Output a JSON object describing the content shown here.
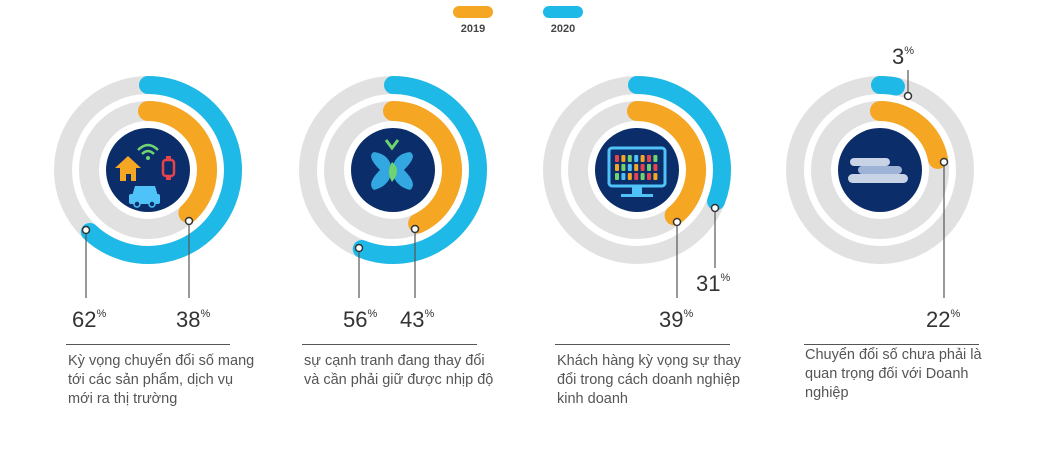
{
  "legend": [
    {
      "label": "2019",
      "color": "#F5A623"
    },
    {
      "label": "2020",
      "color": "#1EB9E6"
    }
  ],
  "colors": {
    "track": "#E1E1E1",
    "center": "#0B2E6B",
    "outer": "#1EB9E6",
    "inner": "#F5A623"
  },
  "chart_data": [
    {
      "type": "donut",
      "series": [
        {
          "name": "2020",
          "value": 62
        },
        {
          "name": "2019",
          "value": 38
        }
      ],
      "icon": "devices-home-car-icon",
      "description": "Kỳ vọng chuyển đổi số mang tới các sản phẩm, dịch vụ mới ra thị trường"
    },
    {
      "type": "donut",
      "series": [
        {
          "name": "2020",
          "value": 56
        },
        {
          "name": "2019",
          "value": 43
        }
      ],
      "icon": "butterfly-icon",
      "description": "sự cạnh tranh đang thay đổi và cần phải giữ được nhịp độ"
    },
    {
      "type": "donut",
      "series": [
        {
          "name": "2020",
          "value": 31
        },
        {
          "name": "2019",
          "value": 39
        }
      ],
      "icon": "monitor-dashboard-icon",
      "description": "Khách hàng kỳ vọng sự thay đổi trong cách doanh nghiệp kinh doanh"
    },
    {
      "type": "donut",
      "series": [
        {
          "name": "2020",
          "value": 3
        },
        {
          "name": "2019",
          "value": 22
        }
      ],
      "icon": "cloud-icon",
      "description": "Chuyển đổi số chưa phải là quan trọng đối với Doanh nghiệp"
    }
  ],
  "labels": [
    {
      "outer": {
        "value": "62",
        "unit": "%"
      },
      "inner": {
        "value": "38",
        "unit": "%"
      }
    },
    {
      "outer": {
        "value": "56",
        "unit": "%"
      },
      "inner": {
        "value": "43",
        "unit": "%"
      }
    },
    {
      "outer": {
        "value": "31",
        "unit": "%"
      },
      "inner": {
        "value": "39",
        "unit": "%"
      }
    },
    {
      "outer": {
        "value": "3",
        "unit": "%"
      },
      "inner": {
        "value": "22",
        "unit": "%"
      }
    }
  ]
}
